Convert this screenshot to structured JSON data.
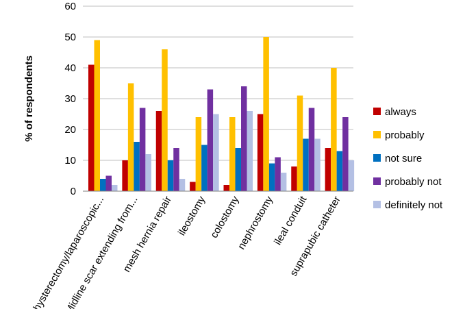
{
  "chart_data": {
    "type": "bar",
    "ylabel": "% of respondents",
    "ylim": [
      0,
      60
    ],
    "yticks": [
      0,
      10,
      20,
      30,
      40,
      50,
      60
    ],
    "grid": "horizontal",
    "legend_position": "right",
    "categories": [
      "hysterectomy/laparoscopic...",
      "*Midline scar extending from...",
      "mesh hernia repair",
      "ileostomy",
      "colostomy",
      "nephrostomy",
      "ileal conduit",
      "suprapubic catheter"
    ],
    "series": [
      {
        "name": "always",
        "color": "#C00000",
        "values": [
          41,
          10,
          26,
          3,
          2,
          25,
          8,
          14
        ]
      },
      {
        "name": "probably",
        "color": "#FFC000",
        "values": [
          49,
          35,
          46,
          24,
          24,
          50,
          31,
          40
        ]
      },
      {
        "name": "not sure",
        "color": "#0070C0",
        "values": [
          4,
          16,
          10,
          15,
          14,
          9,
          17,
          13
        ]
      },
      {
        "name": "probably not",
        "color": "#7030A0",
        "values": [
          5,
          27,
          14,
          33,
          34,
          11,
          27,
          24
        ]
      },
      {
        "name": "definitely not",
        "color": "#B4C0E4",
        "values": [
          2,
          12,
          4,
          25,
          26,
          6,
          17,
          10
        ]
      }
    ]
  }
}
